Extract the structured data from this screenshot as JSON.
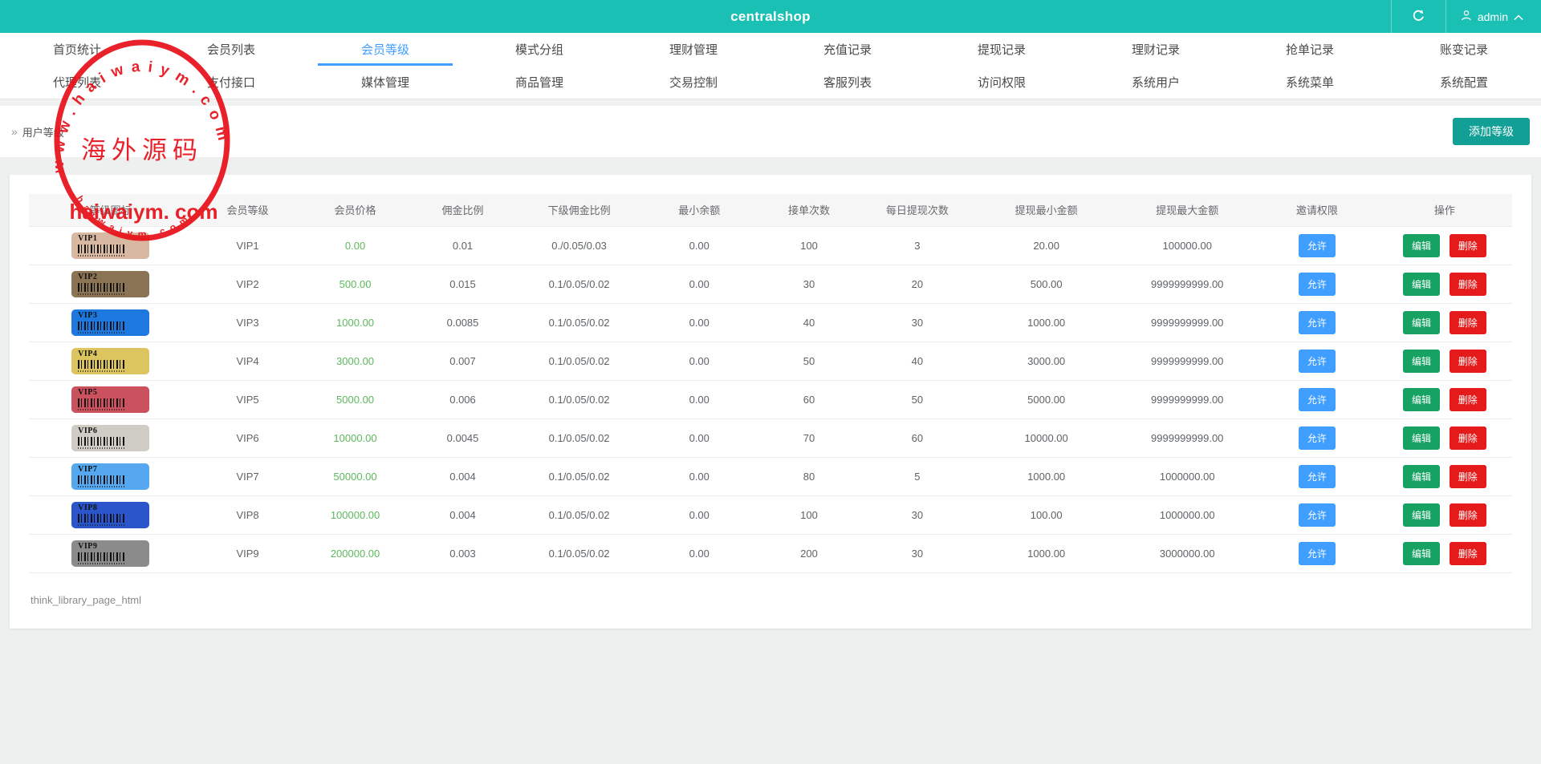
{
  "colors": {
    "header_bg": "#1bc0b4",
    "accent_teal": "#12a096",
    "active_tab_blue": "#409eff",
    "price_green": "#5cb85c",
    "invite_blue": "#409eff",
    "edit_green": "#17a263",
    "delete_red": "#e51a1a",
    "watermark_red": "#e8111a"
  },
  "header": {
    "title": "centralshop",
    "user": {
      "name": "admin"
    },
    "icons": [
      "refresh-icon",
      "person-icon",
      "chevron-up-icon"
    ]
  },
  "nav": {
    "tabs": [
      {
        "label": "首页统计",
        "active": false
      },
      {
        "label": "会员列表",
        "active": false
      },
      {
        "label": "会员等级",
        "active": true
      },
      {
        "label": "模式分组",
        "active": false
      },
      {
        "label": "理财管理",
        "active": false
      },
      {
        "label": "充值记录",
        "active": false
      },
      {
        "label": "提现记录",
        "active": false
      },
      {
        "label": "理财记录",
        "active": false
      },
      {
        "label": "抢单记录",
        "active": false
      },
      {
        "label": "账变记录",
        "active": false
      },
      {
        "label": "代理列表",
        "active": false
      },
      {
        "label": "支付接口",
        "active": false
      },
      {
        "label": "媒体管理",
        "active": false
      },
      {
        "label": "商品管理",
        "active": false
      },
      {
        "label": "交易控制",
        "active": false
      },
      {
        "label": "客服列表",
        "active": false
      },
      {
        "label": "访问权限",
        "active": false
      },
      {
        "label": "系统用户",
        "active": false
      },
      {
        "label": "系统菜单",
        "active": false
      },
      {
        "label": "系统配置",
        "active": false
      }
    ]
  },
  "toolbar": {
    "breadcrumb_icon": "»",
    "breadcrumb": "用户等级",
    "add_button": "添加等级"
  },
  "table": {
    "headers": [
      "等级图标",
      "会员等级",
      "会员价格",
      "佣金比例",
      "下级佣金比例",
      "最小余额",
      "接单次数",
      "每日提现次数",
      "提现最小金额",
      "提现最大金额",
      "邀请权限",
      "操作"
    ],
    "actions": {
      "invite": "允许",
      "edit": "编辑",
      "delete": "删除"
    },
    "rows": [
      {
        "level": "VIP1",
        "badge_color": "#d9b8a2",
        "price": "0.00",
        "commission": "0.01",
        "sub_commission": "0./0.05/0.03",
        "min_balance": "0.00",
        "orders": "100",
        "daily_withdrawals": "3",
        "min_withdraw": "20.00",
        "max_withdraw": "100000.00"
      },
      {
        "level": "VIP2",
        "badge_color": "#8b7355",
        "price": "500.00",
        "commission": "0.015",
        "sub_commission": "0.1/0.05/0.02",
        "min_balance": "0.00",
        "orders": "30",
        "daily_withdrawals": "20",
        "min_withdraw": "500.00",
        "max_withdraw": "9999999999.00"
      },
      {
        "level": "VIP3",
        "badge_color": "#1d78e0",
        "price": "1000.00",
        "commission": "0.0085",
        "sub_commission": "0.1/0.05/0.02",
        "min_balance": "0.00",
        "orders": "40",
        "daily_withdrawals": "30",
        "min_withdraw": "1000.00",
        "max_withdraw": "9999999999.00"
      },
      {
        "level": "VIP4",
        "badge_color": "#dcc45e",
        "price": "3000.00",
        "commission": "0.007",
        "sub_commission": "0.1/0.05/0.02",
        "min_balance": "0.00",
        "orders": "50",
        "daily_withdrawals": "40",
        "min_withdraw": "3000.00",
        "max_withdraw": "9999999999.00"
      },
      {
        "level": "VIP5",
        "badge_color": "#ca515d",
        "price": "5000.00",
        "commission": "0.006",
        "sub_commission": "0.1/0.05/0.02",
        "min_balance": "0.00",
        "orders": "60",
        "daily_withdrawals": "50",
        "min_withdraw": "5000.00",
        "max_withdraw": "9999999999.00"
      },
      {
        "level": "VIP6",
        "badge_color": "#cfcbc5",
        "price": "10000.00",
        "commission": "0.0045",
        "sub_commission": "0.1/0.05/0.02",
        "min_balance": "0.00",
        "orders": "70",
        "daily_withdrawals": "60",
        "min_withdraw": "10000.00",
        "max_withdraw": "9999999999.00"
      },
      {
        "level": "VIP7",
        "badge_color": "#55a7ef",
        "price": "50000.00",
        "commission": "0.004",
        "sub_commission": "0.1/0.05/0.02",
        "min_balance": "0.00",
        "orders": "80",
        "daily_withdrawals": "5",
        "min_withdraw": "1000.00",
        "max_withdraw": "1000000.00"
      },
      {
        "level": "VIP8",
        "badge_color": "#2b56cb",
        "price": "100000.00",
        "commission": "0.004",
        "sub_commission": "0.1/0.05/0.02",
        "min_balance": "0.00",
        "orders": "100",
        "daily_withdrawals": "30",
        "min_withdraw": "100.00",
        "max_withdraw": "1000000.00"
      },
      {
        "level": "VIP9",
        "badge_color": "#8b8b8b",
        "price": "200000.00",
        "commission": "0.003",
        "sub_commission": "0.1/0.05/0.02",
        "min_balance": "0.00",
        "orders": "200",
        "daily_withdrawals": "30",
        "min_withdraw": "1000.00",
        "max_withdraw": "3000000.00"
      }
    ]
  },
  "footer": {
    "debug_text": "think_library_page_html"
  },
  "watermark": {
    "arc_text": "w w w . h a i w a i y m . c o m",
    "center_cn": "海外源码",
    "center_en": "haiwaiym. com",
    "bottom_arc_text": "h a i w a i y m . c o m"
  }
}
